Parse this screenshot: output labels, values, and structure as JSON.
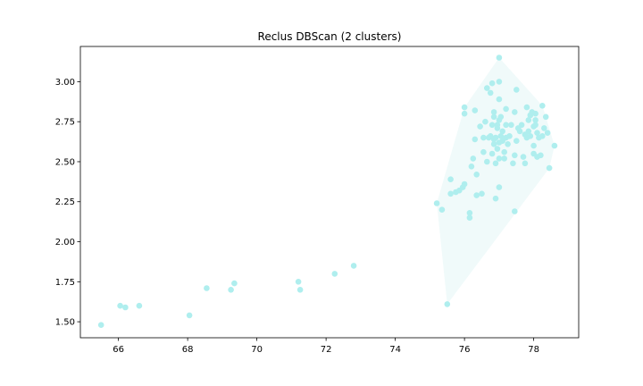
{
  "chart_data": {
    "type": "scatter",
    "title": "Reclus DBScan (2 clusters)",
    "xlabel": "",
    "ylabel": "",
    "xlim": [
      64.9,
      79.3
    ],
    "ylim": [
      1.4,
      3.22
    ],
    "xticks": [
      66,
      68,
      70,
      72,
      74,
      76,
      78
    ],
    "yticks": [
      1.5,
      1.75,
      2.0,
      2.25,
      2.5,
      2.75,
      3.0
    ],
    "xtick_labels": [
      "66",
      "68",
      "70",
      "72",
      "74",
      "76",
      "78"
    ],
    "ytick_labels": [
      "1.50",
      "1.75",
      "2.00",
      "2.25",
      "2.50",
      "2.75",
      "3.00"
    ],
    "grid": false,
    "point_color": "#afeeee",
    "hull_color": "#f0fafa",
    "series": [
      {
        "points": [
          [
            65.5,
            1.48
          ],
          [
            66.05,
            1.6
          ],
          [
            66.2,
            1.59
          ],
          [
            66.6,
            1.6
          ],
          [
            68.05,
            1.54
          ],
          [
            68.55,
            1.71
          ],
          [
            69.25,
            1.7
          ],
          [
            69.35,
            1.74
          ],
          [
            71.2,
            1.75
          ],
          [
            71.25,
            1.7
          ],
          [
            72.25,
            1.8
          ],
          [
            72.8,
            1.85
          ],
          [
            75.2,
            2.24
          ],
          [
            75.35,
            2.2
          ],
          [
            75.5,
            1.61
          ],
          [
            75.6,
            2.39
          ],
          [
            75.6,
            2.3
          ],
          [
            75.75,
            2.31
          ],
          [
            75.85,
            2.32
          ],
          [
            75.95,
            2.34
          ],
          [
            76.0,
            2.36
          ],
          [
            76.0,
            2.8
          ],
          [
            76.0,
            2.84
          ],
          [
            76.15,
            2.15
          ],
          [
            76.15,
            2.18
          ],
          [
            76.2,
            2.47
          ],
          [
            76.25,
            2.52
          ],
          [
            76.3,
            2.64
          ],
          [
            76.3,
            2.82
          ],
          [
            76.35,
            2.42
          ],
          [
            76.35,
            2.29
          ],
          [
            76.45,
            2.72
          ],
          [
            76.5,
            2.3
          ],
          [
            76.55,
            2.65
          ],
          [
            76.55,
            2.56
          ],
          [
            76.6,
            2.75
          ],
          [
            76.65,
            2.96
          ],
          [
            76.65,
            2.5
          ],
          [
            76.7,
            2.65
          ],
          [
            76.75,
            2.66
          ],
          [
            76.75,
            2.93
          ],
          [
            76.8,
            2.99
          ],
          [
            76.8,
            2.55
          ],
          [
            76.8,
            2.73
          ],
          [
            76.85,
            2.64
          ],
          [
            76.85,
            2.61
          ],
          [
            76.85,
            2.78
          ],
          [
            76.85,
            2.81
          ],
          [
            76.9,
            2.49
          ],
          [
            76.9,
            2.27
          ],
          [
            76.9,
            2.65
          ],
          [
            76.95,
            2.73
          ],
          [
            76.95,
            2.58
          ],
          [
            76.95,
            2.71
          ],
          [
            77.0,
            3.15
          ],
          [
            77.0,
            3.0
          ],
          [
            77.0,
            2.89
          ],
          [
            77.0,
            2.76
          ],
          [
            77.0,
            2.62
          ],
          [
            77.0,
            2.52
          ],
          [
            77.0,
            2.34
          ],
          [
            77.05,
            2.66
          ],
          [
            77.05,
            2.78
          ],
          [
            77.1,
            2.69
          ],
          [
            77.1,
            2.63
          ],
          [
            77.15,
            2.52
          ],
          [
            77.15,
            2.56
          ],
          [
            77.2,
            2.65
          ],
          [
            77.2,
            2.73
          ],
          [
            77.2,
            2.83
          ],
          [
            77.25,
            2.61
          ],
          [
            77.3,
            2.66
          ],
          [
            77.35,
            2.73
          ],
          [
            77.4,
            2.49
          ],
          [
            77.45,
            2.19
          ],
          [
            77.45,
            2.54
          ],
          [
            77.45,
            2.81
          ],
          [
            77.5,
            2.95
          ],
          [
            77.5,
            2.63
          ],
          [
            77.55,
            2.71
          ],
          [
            77.6,
            2.69
          ],
          [
            77.65,
            2.73
          ],
          [
            77.7,
            2.53
          ],
          [
            77.75,
            2.49
          ],
          [
            77.75,
            2.67
          ],
          [
            77.8,
            2.84
          ],
          [
            77.8,
            2.65
          ],
          [
            77.85,
            2.76
          ],
          [
            77.85,
            2.69
          ],
          [
            77.9,
            2.79
          ],
          [
            77.9,
            2.66
          ],
          [
            77.95,
            2.81
          ],
          [
            78.0,
            2.72
          ],
          [
            78.0,
            2.6
          ],
          [
            78.0,
            2.55
          ],
          [
            78.05,
            2.8
          ],
          [
            78.05,
            2.76
          ],
          [
            78.05,
            2.73
          ],
          [
            78.1,
            2.68
          ],
          [
            78.1,
            2.53
          ],
          [
            78.15,
            2.65
          ],
          [
            78.2,
            2.54
          ],
          [
            78.25,
            2.66
          ],
          [
            78.25,
            2.85
          ],
          [
            78.3,
            2.71
          ],
          [
            78.35,
            2.78
          ],
          [
            78.4,
            2.68
          ],
          [
            78.45,
            2.46
          ],
          [
            78.6,
            2.6
          ]
        ]
      }
    ]
  }
}
